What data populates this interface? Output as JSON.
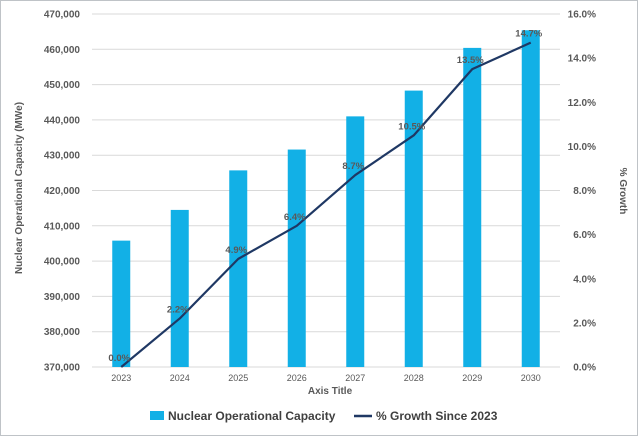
{
  "chart_data": {
    "type": "bar+line",
    "categories": [
      "2023",
      "2024",
      "2025",
      "2026",
      "2027",
      "2028",
      "2029",
      "2030"
    ],
    "series": [
      {
        "name": "Nuclear Operational Capacity",
        "kind": "bar",
        "axis": "left",
        "values": [
          405800,
          414500,
          425700,
          431600,
          441000,
          448300,
          460400,
          465400
        ]
      },
      {
        "name": "% Growth Since 2023",
        "kind": "line",
        "axis": "right",
        "values": [
          0.0,
          2.2,
          4.9,
          6.4,
          8.7,
          10.5,
          13.5,
          14.7
        ],
        "labels": [
          "0.0%",
          "2.2%",
          "4.9%",
          "6.4%",
          "8.7%",
          "10.5%",
          "13.5%",
          "14.7%"
        ]
      }
    ],
    "ylabel": "Nuclear Operational Capacity (MWe)",
    "y2label": "% Growth",
    "xlabel": "Axis Title",
    "ylim": [
      370000,
      470000
    ],
    "y2lim": [
      0,
      16
    ],
    "yticks": [
      "370,000",
      "380,000",
      "390,000",
      "400,000",
      "410,000",
      "420,000",
      "430,000",
      "440,000",
      "450,000",
      "460,000",
      "470,000"
    ],
    "y2ticks": [
      "0.0%",
      "2.0%",
      "4.0%",
      "6.0%",
      "8.0%",
      "10.0%",
      "12.0%",
      "14.0%",
      "16.0%"
    ],
    "grid": true,
    "legend": "bottom",
    "colors": {
      "bar": "#12b0e6",
      "line": "#1f3864",
      "grid": "#d9d9d9"
    }
  }
}
